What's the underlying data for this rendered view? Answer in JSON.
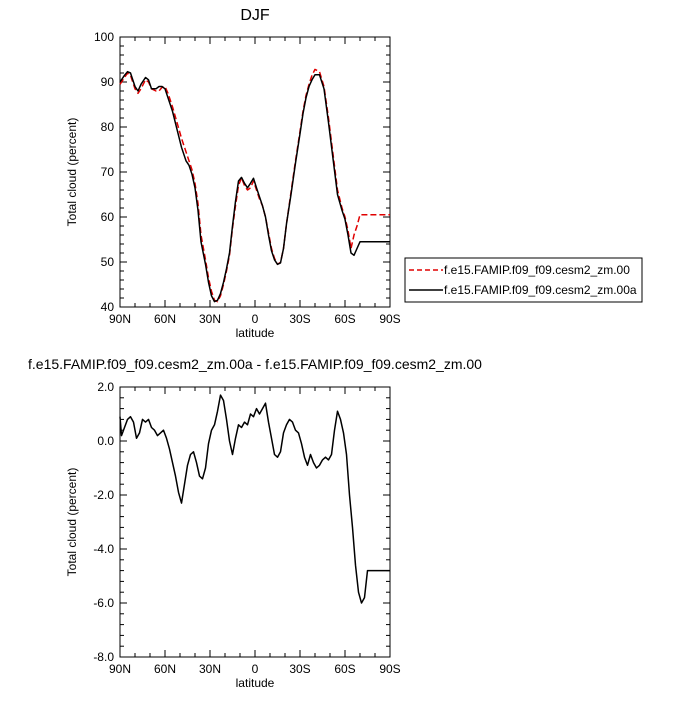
{
  "chart_data": [
    {
      "type": "line",
      "title": "DJF",
      "xlabel": "latitude",
      "ylabel": "Total cloud (percent)",
      "xlim": [
        90,
        -90
      ],
      "ylim": [
        40,
        100
      ],
      "x_ticks": [
        90,
        60,
        30,
        0,
        -30,
        -60,
        -90
      ],
      "x_tick_labels": [
        "90N",
        "60N",
        "30N",
        "0",
        "30S",
        "60S",
        "90S"
      ],
      "y_ticks": [
        40,
        50,
        60,
        70,
        80,
        90,
        100
      ],
      "y_tick_labels": [
        "40",
        "50",
        "60",
        "70",
        "80",
        "90",
        "100"
      ],
      "legend_position": "right",
      "series": [
        {
          "name": "f.e15.FAMIP.f09_f09.cesm2_zm.00",
          "color": "#e00000",
          "dash": "dashed",
          "x": [
            90,
            87,
            85,
            83,
            80,
            78,
            76,
            73,
            71,
            69,
            66,
            64,
            62,
            60,
            58,
            55,
            52,
            49,
            46,
            44,
            42,
            40,
            38,
            36,
            33,
            31,
            29,
            27,
            25,
            23,
            21,
            19,
            17,
            15,
            13,
            11,
            9,
            7,
            5,
            3,
            1,
            -1,
            -3,
            -5,
            -7,
            -9,
            -11,
            -13,
            -15,
            -17,
            -19,
            -21,
            -24,
            -27,
            -30,
            -32,
            -34,
            -36,
            -38,
            -40,
            -43,
            -46,
            -49,
            -52,
            -55,
            -58,
            -60,
            -62,
            -64,
            -66,
            -68,
            -70,
            -72,
            -74,
            -76,
            -78,
            -80,
            -82,
            -84,
            -86,
            -88,
            -90
          ],
          "values": [
            89.5,
            91,
            92,
            91.5,
            88.5,
            87.5,
            88.5,
            90.5,
            90,
            88.5,
            88,
            88,
            88.8,
            89,
            87.5,
            84.5,
            81,
            77.5,
            74.5,
            72.5,
            70.5,
            67.5,
            63,
            56,
            50.5,
            46.5,
            43.5,
            41.5,
            41.2,
            42.5,
            45,
            48,
            51.5,
            57.5,
            62.5,
            67,
            68.7,
            67,
            66,
            66.5,
            68,
            66,
            64,
            62.5,
            60,
            56.5,
            53,
            50.8,
            49.5,
            49.9,
            53,
            58.5,
            65.5,
            72.5,
            79,
            83.5,
            87,
            89.5,
            91.5,
            92.8,
            92.3,
            89,
            82,
            74,
            66,
            62,
            60,
            57,
            53,
            56,
            58,
            60.5,
            60.5,
            60.5,
            60.5,
            60.5,
            60.5,
            60.5,
            60.5,
            60.5,
            60.5,
            60.5
          ]
        },
        {
          "name": "f.e15.FAMIP.f09_f09.cesm2_zm.00a",
          "color": "#000000",
          "dash": "solid",
          "x": [
            90,
            87,
            85,
            83,
            80,
            78,
            76,
            73,
            71,
            69,
            66,
            64,
            62,
            60,
            58,
            55,
            52,
            49,
            46,
            44,
            42,
            40,
            38,
            36,
            33,
            31,
            29,
            27,
            25,
            23,
            21,
            19,
            17,
            15,
            13,
            11,
            9,
            7,
            5,
            3,
            1,
            -1,
            -3,
            -5,
            -7,
            -9,
            -11,
            -13,
            -15,
            -17,
            -19,
            -21,
            -24,
            -27,
            -30,
            -32,
            -34,
            -36,
            -38,
            -40,
            -43,
            -46,
            -49,
            -52,
            -55,
            -58,
            -60,
            -62,
            -64,
            -66,
            -68,
            -70,
            -72,
            -74,
            -76,
            -78,
            -80,
            -82,
            -84,
            -86,
            -88,
            -90
          ],
          "values": [
            90,
            91.5,
            92.3,
            92,
            89,
            88,
            89.5,
            91,
            90.5,
            88.5,
            88.5,
            89,
            89,
            88.5,
            86.5,
            83.5,
            79.5,
            75.5,
            72.5,
            71.5,
            69.5,
            66.5,
            61.5,
            54.5,
            49.5,
            45.5,
            42.5,
            41.2,
            41.5,
            43,
            45.5,
            48.5,
            52,
            58,
            63.5,
            68,
            68.8,
            67.5,
            66.5,
            67.5,
            68.6,
            66.5,
            64.5,
            62.5,
            60,
            56,
            52.5,
            50.5,
            49.5,
            49.8,
            53,
            58.5,
            65,
            72,
            78.5,
            83,
            86.5,
            89,
            90.5,
            91.6,
            91.6,
            88.5,
            81,
            73,
            65,
            61.5,
            59.5,
            56,
            52,
            51.5,
            53,
            54.5,
            54.5,
            54.5,
            54.5,
            54.5,
            54.5,
            54.5,
            54.5,
            54.5,
            54.5,
            54.5
          ]
        }
      ]
    },
    {
      "type": "line",
      "title": "f.e15.FAMIP.f09_f09.cesm2_zm.00a - f.e15.FAMIP.f09_f09.cesm2_zm.00",
      "xlabel": "latitude",
      "ylabel": "Total cloud (percent)",
      "xlim": [
        90,
        -90
      ],
      "ylim": [
        -8,
        2
      ],
      "x_ticks": [
        90,
        60,
        30,
        0,
        -30,
        -60,
        -90
      ],
      "x_tick_labels": [
        "90N",
        "60N",
        "30N",
        "0",
        "30S",
        "60S",
        "90S"
      ],
      "y_ticks": [
        -8,
        -6,
        -4,
        -2,
        0,
        2
      ],
      "y_tick_labels": [
        "-8.0",
        "-6.0",
        "-4.0",
        "-2.0",
        "0.0",
        "2.0"
      ],
      "series": [
        {
          "color": "#000000",
          "dash": "solid",
          "x": [
            90,
            89,
            87,
            85,
            83,
            81,
            79,
            77,
            75,
            73,
            71,
            69,
            67,
            65,
            63,
            61,
            59,
            57,
            55,
            53,
            51,
            49,
            47,
            45,
            43,
            41,
            39,
            37,
            35,
            33,
            31,
            29,
            27,
            25,
            23,
            21,
            19,
            17,
            15,
            13,
            11,
            9,
            7,
            5,
            3,
            1,
            -1,
            -3,
            -5,
            -7,
            -9,
            -11,
            -13,
            -15,
            -17,
            -19,
            -21,
            -23,
            -25,
            -27,
            -29,
            -31,
            -33,
            -35,
            -37,
            -39,
            -41,
            -43,
            -45,
            -47,
            -49,
            -51,
            -53,
            -55,
            -57,
            -59,
            -61,
            -63,
            -65,
            -67,
            -69,
            -71,
            -73,
            -75,
            -77,
            -79,
            -81,
            -83,
            -84,
            -85,
            -86,
            -87,
            -88,
            -89,
            -90
          ],
          "values": [
            0.9,
            0.2,
            0.5,
            0.8,
            0.9,
            0.7,
            0.1,
            0.3,
            0.8,
            0.7,
            0.8,
            0.5,
            0.4,
            0.2,
            0.3,
            0.4,
            0.1,
            -0.3,
            -0.8,
            -1.3,
            -1.9,
            -2.3,
            -1.6,
            -0.9,
            -0.5,
            -0.4,
            -0.8,
            -1.3,
            -1.4,
            -1.0,
            -0.1,
            0.4,
            0.6,
            1.1,
            1.7,
            1.5,
            0.8,
            0.0,
            -0.5,
            0.1,
            0.6,
            0.5,
            0.7,
            0.6,
            1.0,
            0.9,
            1.2,
            1.0,
            1.2,
            1.4,
            0.7,
            0.1,
            -0.5,
            -0.6,
            -0.4,
            0.3,
            0.6,
            0.8,
            0.7,
            0.4,
            0.3,
            -0.1,
            -0.6,
            -0.9,
            -0.5,
            -0.8,
            -1.0,
            -0.9,
            -0.7,
            -0.6,
            -0.7,
            -0.5,
            0.4,
            1.1,
            0.8,
            0.3,
            -0.5,
            -2.0,
            -3.2,
            -4.6,
            -5.6,
            -6.0,
            -5.8,
            -4.8,
            -4.8,
            -4.8,
            -4.8,
            -4.8,
            -4.8,
            -4.8,
            -4.8,
            -4.8,
            -4.8,
            -4.8,
            -4.8
          ]
        }
      ]
    }
  ]
}
